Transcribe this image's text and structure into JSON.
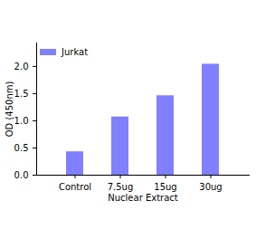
{
  "chart_data": {
    "type": "bar",
    "categories": [
      "Control",
      "7.5ug",
      "15ug",
      "30ug"
    ],
    "series": [
      {
        "name": "Jurkat",
        "color": "#8080ff",
        "values": [
          0.43,
          1.07,
          1.46,
          2.04
        ]
      }
    ],
    "xlabel": "Nuclear Extract",
    "ylabel": "OD (450nm)",
    "ylim": [
      0,
      2.43
    ],
    "yticks": [
      {
        "value": 0,
        "label": "0.0"
      },
      {
        "value": 0.5,
        "label": "0.5"
      },
      {
        "value": 1,
        "label": "1.0"
      },
      {
        "value": 1.5,
        "label": "1.5"
      },
      {
        "value": 2,
        "label": "2.0"
      }
    ],
    "legend": "upper left"
  }
}
